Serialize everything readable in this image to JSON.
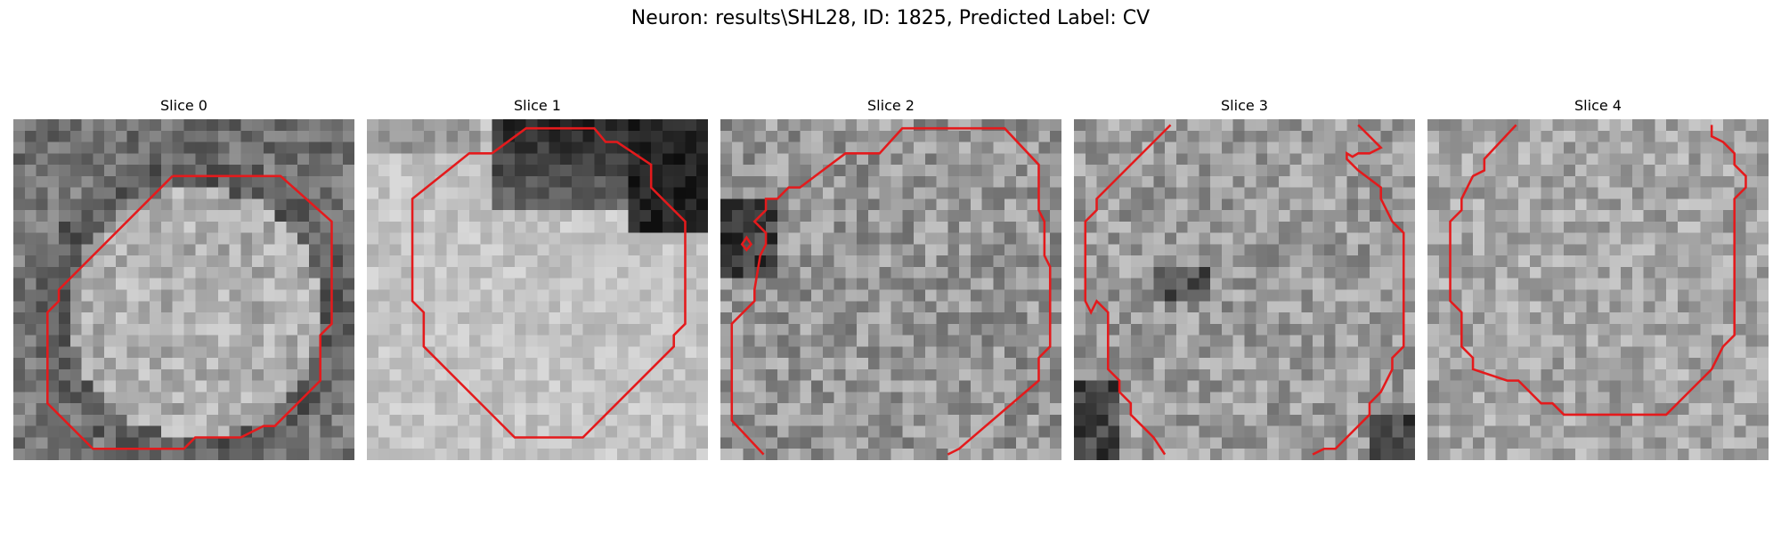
{
  "figure": {
    "title": "Neuron: results\\SHL28, ID: 1825, Predicted Label: CV",
    "contour_color": "#e41a1c"
  },
  "panels": [
    {
      "title": "Slice 0"
    },
    {
      "title": "Slice 1"
    },
    {
      "title": "Slice 2"
    },
    {
      "title": "Slice 3"
    },
    {
      "title": "Slice 4"
    }
  ]
}
